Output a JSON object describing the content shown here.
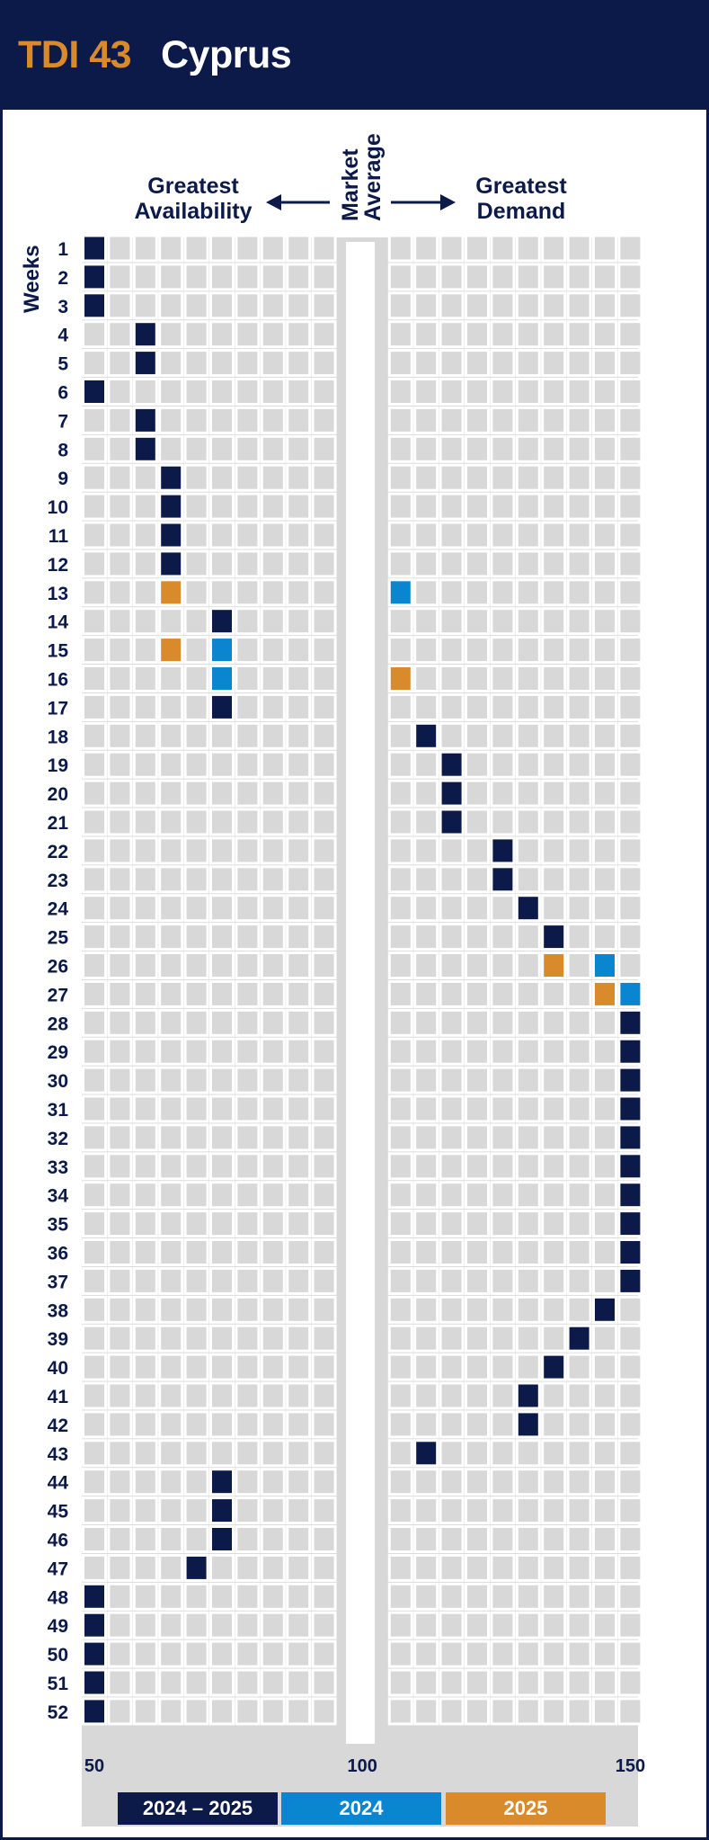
{
  "header": {
    "code": "TDI 43",
    "country": "Cyprus"
  },
  "labels": {
    "left_heading_1": "Greatest",
    "left_heading_2": "Availability",
    "center_1": "Market",
    "center_2": "Average",
    "right_heading_1": "Greatest",
    "right_heading_2": "Demand",
    "weeks": "Weeks"
  },
  "colors": {
    "navy": "#0c1a4a",
    "blue": "#0a85cf",
    "orange": "#d98a2a",
    "cell": "#d8d8d8",
    "panel": "#d8d8d8"
  },
  "legend": [
    {
      "label": "2024 – 2025",
      "color": "#0c1a4a"
    },
    {
      "label": "2024",
      "color": "#0a85cf"
    },
    {
      "label": "2025",
      "color": "#d98a2a"
    }
  ],
  "chart_data": {
    "type": "table",
    "x_ticks": [
      50,
      100,
      150
    ],
    "xlim": [
      50,
      150
    ],
    "y_label": "Weeks",
    "series": [
      {
        "name": "2024 – 2025",
        "color_key": "navy",
        "points": [
          [
            1,
            50
          ],
          [
            2,
            50
          ],
          [
            3,
            50
          ],
          [
            4,
            60
          ],
          [
            5,
            60
          ],
          [
            6,
            50
          ],
          [
            7,
            60
          ],
          [
            8,
            60
          ],
          [
            9,
            65
          ],
          [
            10,
            65
          ],
          [
            11,
            65
          ],
          [
            12,
            65
          ],
          [
            14,
            75
          ],
          [
            17,
            75
          ],
          [
            18,
            110
          ],
          [
            19,
            115
          ],
          [
            20,
            115
          ],
          [
            21,
            115
          ],
          [
            22,
            125
          ],
          [
            23,
            125
          ],
          [
            24,
            130
          ],
          [
            25,
            135
          ],
          [
            28,
            150
          ],
          [
            29,
            150
          ],
          [
            30,
            150
          ],
          [
            31,
            150
          ],
          [
            32,
            150
          ],
          [
            33,
            150
          ],
          [
            34,
            150
          ],
          [
            35,
            150
          ],
          [
            36,
            150
          ],
          [
            37,
            150
          ],
          [
            38,
            145
          ],
          [
            39,
            140
          ],
          [
            40,
            135
          ],
          [
            41,
            130
          ],
          [
            42,
            130
          ],
          [
            43,
            110
          ],
          [
            44,
            75
          ],
          [
            45,
            75
          ],
          [
            46,
            75
          ],
          [
            47,
            70
          ],
          [
            48,
            50
          ],
          [
            49,
            50
          ],
          [
            50,
            50
          ],
          [
            51,
            50
          ],
          [
            52,
            50
          ]
        ]
      },
      {
        "name": "2024",
        "color_key": "blue",
        "points": [
          [
            13,
            105
          ],
          [
            15,
            75
          ],
          [
            16,
            75
          ],
          [
            26,
            145
          ],
          [
            27,
            150
          ]
        ]
      },
      {
        "name": "2025",
        "color_key": "orange",
        "points": [
          [
            13,
            65
          ],
          [
            15,
            65
          ],
          [
            16,
            105
          ],
          [
            26,
            135
          ],
          [
            27,
            145
          ]
        ]
      }
    ]
  }
}
